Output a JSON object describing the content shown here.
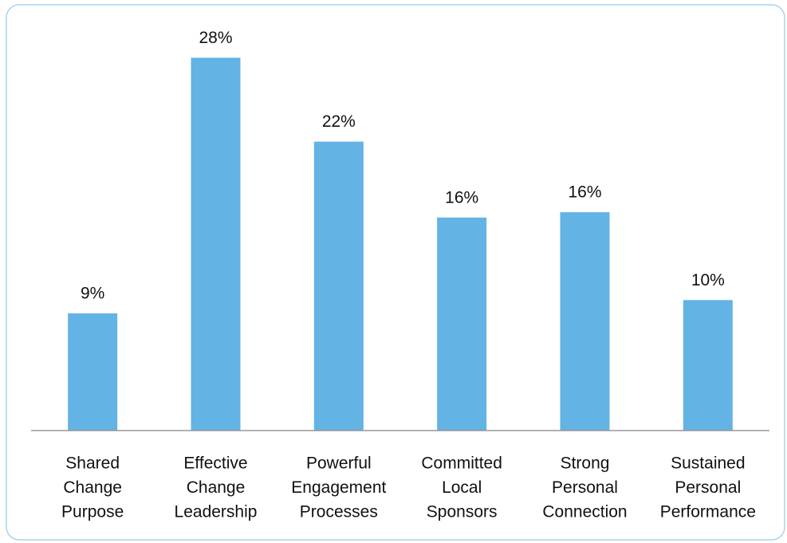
{
  "chart_data": {
    "type": "bar",
    "categories": [
      [
        "Shared",
        "Change",
        "Purpose"
      ],
      [
        "Effective",
        "Change",
        "Leadership"
      ],
      [
        "Powerful",
        "Engagement",
        "Processes"
      ],
      [
        "Committed",
        "Local",
        "Sponsors"
      ],
      [
        "Strong",
        "Personal",
        "Connection"
      ],
      [
        "Sustained",
        "Personal",
        "Performance"
      ]
    ],
    "values": [
      8.8,
      28,
      21.7,
      16,
      16.4,
      9.8
    ],
    "value_labels": [
      "9%",
      "28%",
      "22%",
      "16%",
      "16%",
      "10%"
    ],
    "color": "#63b3e4",
    "ylim": [
      0,
      30
    ]
  }
}
